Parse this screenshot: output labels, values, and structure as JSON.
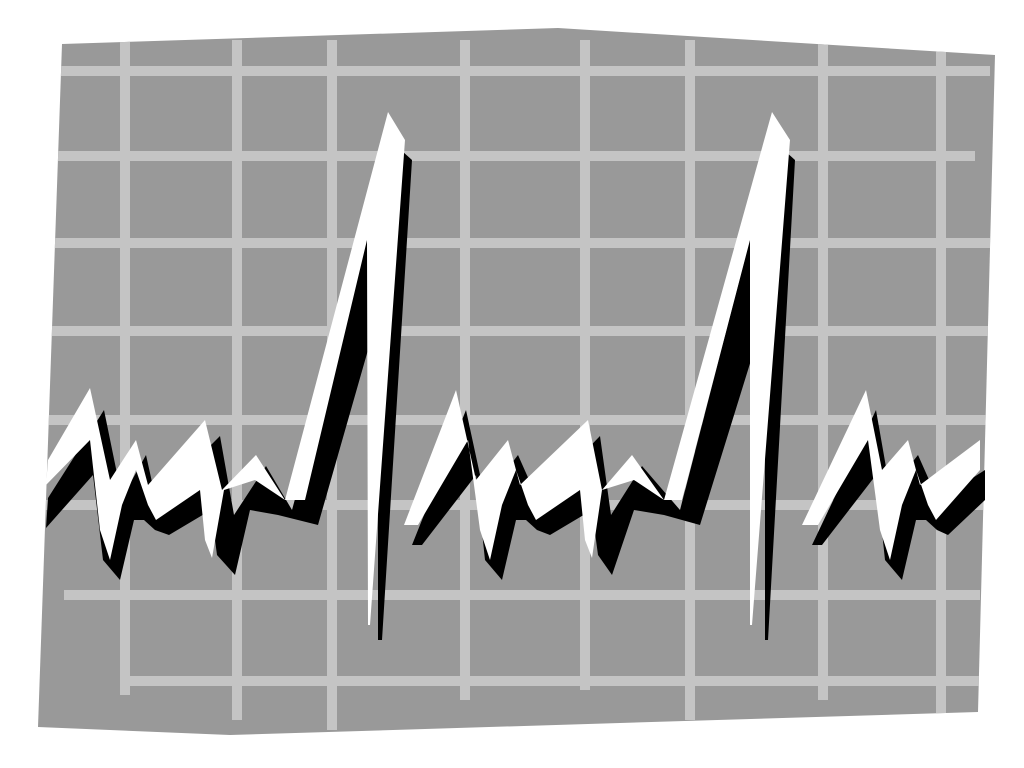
{
  "artwork": {
    "subject": "heartbeat-waveform-on-grid",
    "colors": {
      "background": "#ffffff",
      "panel": "#999999",
      "grid": "#c4c4c4",
      "wave": "#ffffff",
      "wave_shadow": "#000000"
    },
    "wave_cycles_visible": 3
  }
}
